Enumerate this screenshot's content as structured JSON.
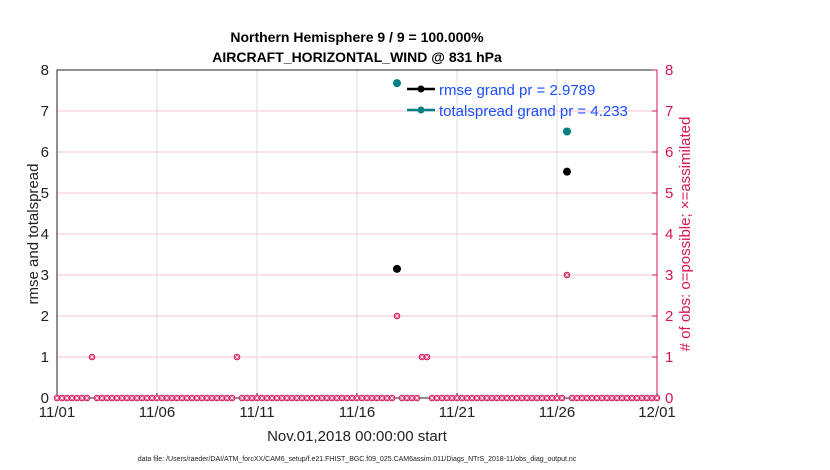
{
  "chart_data": {
    "type": "line",
    "title": [
      "Northern Hemisphere 9 / 9 = 100.000%",
      "AIRCRAFT_HORIZONTAL_WIND @ 831 hPa"
    ],
    "xlabel": "Nov.01,2018 00:00:00 start",
    "ylabel_left": "rmse and totalspread",
    "ylabel_right": "# of obs: o=possible; ×=assimilated",
    "xticks": [
      "11/01",
      "11/06",
      "11/11",
      "11/16",
      "11/21",
      "11/26",
      "12/01"
    ],
    "yticks": [
      "0",
      "1",
      "2",
      "3",
      "4",
      "5",
      "6",
      "7",
      "8"
    ],
    "ylim": [
      0,
      8
    ],
    "xlim_days": [
      0,
      30
    ],
    "grid": true,
    "legend_position": "top-right",
    "series": [
      {
        "name": "rmse grand pr = 2.9789",
        "color": "#000000",
        "x": [
          "11/18 00:00",
          "11/26 12:00"
        ],
        "y": [
          3.15,
          5.52
        ]
      },
      {
        "name": "totalspread grand pr = 4.233",
        "color": "#008080",
        "x": [
          "11/18 00:00",
          "11/26 12:00"
        ],
        "y": [
          7.68,
          6.5
        ]
      }
    ],
    "obs_count": {
      "color": "#d6155a",
      "interval_hours": 6,
      "start": "11/01 00:00",
      "nonzero": [
        {
          "x": "11/02 18:00",
          "y": 1
        },
        {
          "x": "11/10 00:00",
          "y": 1
        },
        {
          "x": "11/18 00:00",
          "y": 2
        },
        {
          "x": "11/19 06:00",
          "y": 1
        },
        {
          "x": "11/19 12:00",
          "y": 1
        },
        {
          "x": "11/26 12:00",
          "y": 3
        }
      ]
    },
    "footnote": "data file: /Users/raeder/DAI/ATM_forcXX/CAM6_setup/f.e21.FHIST_BGC.f09_025.CAM6assim.011/Diags_NTrS_2018-11/obs_diag_output.nc"
  }
}
